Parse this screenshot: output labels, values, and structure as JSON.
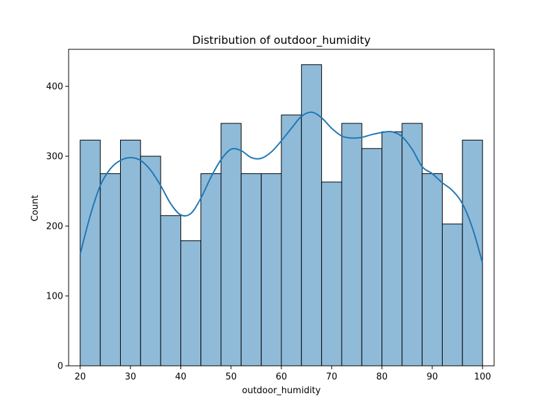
{
  "chart_data": {
    "type": "bar",
    "title": "Distribution of outdoor_humidity",
    "xlabel": "outdoor_humidity",
    "ylabel": "Count",
    "xlim": [
      17.7,
      102.3
    ],
    "ylim": [
      0,
      453
    ],
    "xticks": [
      20,
      30,
      40,
      50,
      60,
      70,
      80,
      90,
      100
    ],
    "yticks": [
      0,
      100,
      200,
      300,
      400
    ],
    "bin_edges": [
      20,
      24,
      28,
      32,
      36,
      40,
      44,
      48,
      52,
      56,
      60,
      64,
      68,
      72,
      76,
      80,
      84,
      88,
      92,
      96,
      100
    ],
    "counts": [
      323,
      275,
      323,
      300,
      215,
      179,
      275,
      347,
      275,
      275,
      359,
      431,
      263,
      347,
      311,
      335,
      347,
      275,
      203,
      323
    ],
    "bar_color": "#8fbbd9",
    "bar_edge_color": "#000000",
    "kde": {
      "color": "#1f77b4",
      "x": [
        20,
        22,
        24,
        26,
        28,
        30,
        32,
        34,
        36,
        38,
        40,
        42,
        44,
        46,
        48,
        50,
        52,
        54,
        56,
        58,
        60,
        62,
        64,
        66,
        68,
        70,
        72,
        74,
        76,
        78,
        80,
        82,
        84,
        86,
        88,
        90,
        92,
        94,
        96,
        98,
        100
      ],
      "y": [
        160,
        215,
        258,
        282,
        294,
        298,
        294,
        280,
        258,
        232,
        216,
        218,
        240,
        270,
        295,
        310,
        308,
        298,
        297,
        306,
        322,
        340,
        357,
        363,
        355,
        340,
        329,
        326,
        327,
        331,
        334,
        335,
        328,
        310,
        285,
        275,
        262,
        251,
        232,
        197,
        147
      ]
    },
    "grid": false,
    "legend": "none"
  }
}
